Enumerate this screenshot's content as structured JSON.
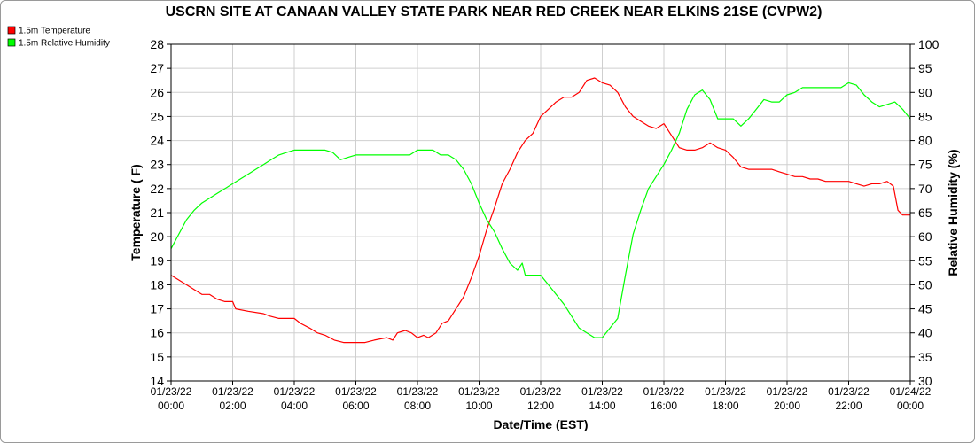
{
  "chart_data": {
    "type": "line",
    "title": "USCRN SITE AT CANAAN VALLEY STATE PARK NEAR RED CREEK NEAR ELKINS 21SE (CVPW2)",
    "xlabel": "Date/Time (EST)",
    "ylabel": "Temperature ( F)",
    "y2label": "Relative Humidity (%)",
    "grid": true,
    "legend_position": "top-left",
    "xlim": [
      0,
      24
    ],
    "ylim": [
      14,
      28
    ],
    "y2lim": [
      30,
      100
    ],
    "x_ticks": [
      {
        "hour": 0,
        "date": "01/23/22",
        "time": "00:00"
      },
      {
        "hour": 2,
        "date": "01/23/22",
        "time": "02:00"
      },
      {
        "hour": 4,
        "date": "01/23/22",
        "time": "04:00"
      },
      {
        "hour": 6,
        "date": "01/23/22",
        "time": "06:00"
      },
      {
        "hour": 8,
        "date": "01/23/22",
        "time": "08:00"
      },
      {
        "hour": 10,
        "date": "01/23/22",
        "time": "10:00"
      },
      {
        "hour": 12,
        "date": "01/23/22",
        "time": "12:00"
      },
      {
        "hour": 14,
        "date": "01/23/22",
        "time": "14:00"
      },
      {
        "hour": 16,
        "date": "01/23/22",
        "time": "16:00"
      },
      {
        "hour": 18,
        "date": "01/23/22",
        "time": "18:00"
      },
      {
        "hour": 20,
        "date": "01/23/22",
        "time": "20:00"
      },
      {
        "hour": 22,
        "date": "01/23/22",
        "time": "22:00"
      },
      {
        "hour": 24,
        "date": "01/24/22",
        "time": "00:00"
      }
    ],
    "y_ticks": [
      14,
      15,
      16,
      17,
      18,
      19,
      20,
      21,
      22,
      23,
      24,
      25,
      26,
      27,
      28
    ],
    "y2_ticks": [
      30,
      35,
      40,
      45,
      50,
      55,
      60,
      65,
      70,
      75,
      80,
      85,
      90,
      95,
      100
    ],
    "series": [
      {
        "name": "1.5m Temperature",
        "axis": "left",
        "color": "#ff0000",
        "points": [
          [
            0,
            18.4
          ],
          [
            0.25,
            18.2
          ],
          [
            0.5,
            18.0
          ],
          [
            0.75,
            17.8
          ],
          [
            1.0,
            17.6
          ],
          [
            1.25,
            17.6
          ],
          [
            1.5,
            17.4
          ],
          [
            1.75,
            17.3
          ],
          [
            2.0,
            17.3
          ],
          [
            2.1,
            17.0
          ],
          [
            2.5,
            16.9
          ],
          [
            3.0,
            16.8
          ],
          [
            3.2,
            16.7
          ],
          [
            3.5,
            16.6
          ],
          [
            4.0,
            16.6
          ],
          [
            4.2,
            16.4
          ],
          [
            4.5,
            16.2
          ],
          [
            4.75,
            16.0
          ],
          [
            5.0,
            15.9
          ],
          [
            5.3,
            15.7
          ],
          [
            5.6,
            15.6
          ],
          [
            6.0,
            15.6
          ],
          [
            6.3,
            15.6
          ],
          [
            6.6,
            15.7
          ],
          [
            7.0,
            15.8
          ],
          [
            7.2,
            15.7
          ],
          [
            7.35,
            16.0
          ],
          [
            7.6,
            16.1
          ],
          [
            7.8,
            16.0
          ],
          [
            8.0,
            15.8
          ],
          [
            8.2,
            15.9
          ],
          [
            8.35,
            15.8
          ],
          [
            8.6,
            16.0
          ],
          [
            8.8,
            16.4
          ],
          [
            9.0,
            16.5
          ],
          [
            9.25,
            17.0
          ],
          [
            9.5,
            17.5
          ],
          [
            9.75,
            18.3
          ],
          [
            10.0,
            19.2
          ],
          [
            10.25,
            20.3
          ],
          [
            10.5,
            21.2
          ],
          [
            10.75,
            22.2
          ],
          [
            11.0,
            22.8
          ],
          [
            11.25,
            23.5
          ],
          [
            11.5,
            24.0
          ],
          [
            11.75,
            24.3
          ],
          [
            12.0,
            25.0
          ],
          [
            12.25,
            25.3
          ],
          [
            12.5,
            25.6
          ],
          [
            12.75,
            25.8
          ],
          [
            13.0,
            25.8
          ],
          [
            13.25,
            26.0
          ],
          [
            13.5,
            26.5
          ],
          [
            13.75,
            26.6
          ],
          [
            14.0,
            26.4
          ],
          [
            14.25,
            26.3
          ],
          [
            14.5,
            26.0
          ],
          [
            14.75,
            25.4
          ],
          [
            15.0,
            25.0
          ],
          [
            15.25,
            24.8
          ],
          [
            15.5,
            24.6
          ],
          [
            15.75,
            24.5
          ],
          [
            16.0,
            24.7
          ],
          [
            16.25,
            24.2
          ],
          [
            16.5,
            23.7
          ],
          [
            16.75,
            23.6
          ],
          [
            17.0,
            23.6
          ],
          [
            17.25,
            23.7
          ],
          [
            17.5,
            23.9
          ],
          [
            17.75,
            23.7
          ],
          [
            18.0,
            23.6
          ],
          [
            18.25,
            23.3
          ],
          [
            18.5,
            22.9
          ],
          [
            18.75,
            22.8
          ],
          [
            19.0,
            22.8
          ],
          [
            19.25,
            22.8
          ],
          [
            19.5,
            22.8
          ],
          [
            19.75,
            22.7
          ],
          [
            20.0,
            22.6
          ],
          [
            20.25,
            22.5
          ],
          [
            20.5,
            22.5
          ],
          [
            20.75,
            22.4
          ],
          [
            21.0,
            22.4
          ],
          [
            21.25,
            22.3
          ],
          [
            21.5,
            22.3
          ],
          [
            21.75,
            22.3
          ],
          [
            22.0,
            22.3
          ],
          [
            22.25,
            22.2
          ],
          [
            22.5,
            22.1
          ],
          [
            22.75,
            22.2
          ],
          [
            23.0,
            22.2
          ],
          [
            23.25,
            22.3
          ],
          [
            23.45,
            22.1
          ],
          [
            23.6,
            21.1
          ],
          [
            23.75,
            20.9
          ],
          [
            24.0,
            20.9
          ]
        ]
      },
      {
        "name": "1.5m Relative Humidity",
        "axis": "right",
        "color": "#00ff00",
        "points": [
          [
            0,
            57.5
          ],
          [
            0.25,
            60.5
          ],
          [
            0.5,
            63.5
          ],
          [
            0.75,
            65.5
          ],
          [
            1.0,
            67.0
          ],
          [
            1.25,
            68.0
          ],
          [
            1.5,
            69.0
          ],
          [
            1.75,
            70.0
          ],
          [
            2.0,
            71.0
          ],
          [
            2.25,
            72.0
          ],
          [
            2.5,
            73.0
          ],
          [
            2.75,
            74.0
          ],
          [
            3.0,
            75.0
          ],
          [
            3.25,
            76.0
          ],
          [
            3.5,
            77.0
          ],
          [
            3.75,
            77.5
          ],
          [
            4.0,
            78.0
          ],
          [
            4.5,
            78.0
          ],
          [
            5.0,
            78.0
          ],
          [
            5.25,
            77.5
          ],
          [
            5.5,
            76.0
          ],
          [
            5.75,
            76.5
          ],
          [
            6.0,
            77.0
          ],
          [
            6.5,
            77.0
          ],
          [
            7.0,
            77.0
          ],
          [
            7.5,
            77.0
          ],
          [
            7.75,
            77.0
          ],
          [
            8.0,
            78.0
          ],
          [
            8.5,
            78.0
          ],
          [
            8.75,
            77.0
          ],
          [
            9.0,
            77.0
          ],
          [
            9.25,
            76.0
          ],
          [
            9.5,
            74.0
          ],
          [
            9.75,
            71.0
          ],
          [
            10.0,
            67.0
          ],
          [
            10.25,
            63.5
          ],
          [
            10.5,
            61.0
          ],
          [
            10.75,
            57.5
          ],
          [
            11.0,
            54.5
          ],
          [
            11.25,
            53.0
          ],
          [
            11.4,
            54.5
          ],
          [
            11.5,
            52.0
          ],
          [
            11.75,
            52.0
          ],
          [
            12.0,
            52.0
          ],
          [
            12.25,
            50.0
          ],
          [
            12.5,
            48.0
          ],
          [
            12.75,
            46.0
          ],
          [
            13.0,
            43.5
          ],
          [
            13.25,
            41.0
          ],
          [
            13.5,
            40.0
          ],
          [
            13.75,
            39.0
          ],
          [
            14.0,
            39.0
          ],
          [
            14.25,
            41.0
          ],
          [
            14.5,
            43.0
          ],
          [
            14.75,
            52.0
          ],
          [
            15.0,
            60.5
          ],
          [
            15.25,
            65.5
          ],
          [
            15.5,
            70.0
          ],
          [
            15.75,
            72.5
          ],
          [
            16.0,
            75.0
          ],
          [
            16.25,
            78.0
          ],
          [
            16.5,
            81.5
          ],
          [
            16.75,
            86.5
          ],
          [
            17.0,
            89.5
          ],
          [
            17.25,
            90.5
          ],
          [
            17.5,
            88.5
          ],
          [
            17.75,
            84.5
          ],
          [
            18.0,
            84.5
          ],
          [
            18.25,
            84.5
          ],
          [
            18.5,
            83.0
          ],
          [
            18.75,
            84.5
          ],
          [
            19.0,
            86.5
          ],
          [
            19.25,
            88.5
          ],
          [
            19.5,
            88.0
          ],
          [
            19.75,
            88.0
          ],
          [
            20.0,
            89.5
          ],
          [
            20.25,
            90.0
          ],
          [
            20.5,
            91.0
          ],
          [
            21.0,
            91.0
          ],
          [
            21.5,
            91.0
          ],
          [
            21.75,
            91.0
          ],
          [
            22.0,
            92.0
          ],
          [
            22.25,
            91.5
          ],
          [
            22.5,
            89.5
          ],
          [
            22.75,
            88.0
          ],
          [
            23.0,
            87.0
          ],
          [
            23.25,
            87.5
          ],
          [
            23.5,
            88.0
          ],
          [
            23.75,
            86.5
          ],
          [
            24.0,
            84.5
          ]
        ]
      }
    ]
  }
}
